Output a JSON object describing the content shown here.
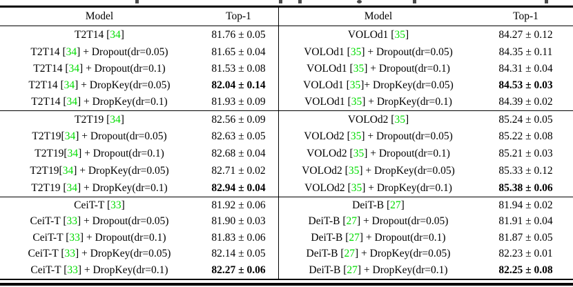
{
  "table": {
    "accent_green": "#00dc00",
    "header": {
      "model": "Model",
      "top1": "Top-1"
    },
    "blocks": [
      {
        "rows": [
          {
            "l": {
              "pre": "T2T14 [",
              "cite": "34",
              "post": "]",
              "top1": "81.76 ± 0.05",
              "bold": false
            },
            "r": {
              "pre": "VOLOd1 [",
              "cite": "35",
              "post": "]",
              "top1": "84.27 ± 0.12",
              "bold": false
            }
          },
          {
            "l": {
              "pre": "T2T14 [",
              "cite": "34",
              "post": "] + Dropout(dr=0.05)",
              "top1": "81.65 ± 0.04",
              "bold": false
            },
            "r": {
              "pre": "VOLOd1 [",
              "cite": "35",
              "post": "] + Dropout(dr=0.05)",
              "top1": "84.35 ± 0.11",
              "bold": false
            }
          },
          {
            "l": {
              "pre": "T2T14 [",
              "cite": "34",
              "post": "] + Dropout(dr=0.1)",
              "top1": "81.53 ± 0.08",
              "bold": false
            },
            "r": {
              "pre": "VOLOd1 [",
              "cite": "35",
              "post": "] + Dropout(dr=0.1)",
              "top1": "84.31 ± 0.04",
              "bold": false
            }
          },
          {
            "l": {
              "pre": "T2T14 [",
              "cite": "34",
              "post": "] + DropKey(dr=0.05)",
              "top1": "82.04 ± 0.14",
              "bold": true
            },
            "r": {
              "pre": "VOLOd1 [",
              "cite": "35",
              "post": "]+ DropKey(dr=0.05)",
              "top1": "84.53 ± 0.03",
              "bold": true
            }
          },
          {
            "l": {
              "pre": "T2T14 [",
              "cite": "34",
              "post": "] + DropKey(dr=0.1)",
              "top1": "81.93 ± 0.09",
              "bold": false
            },
            "r": {
              "pre": "VOLOd1 [",
              "cite": "35",
              "post": "] + DropKey(dr=0.1)",
              "top1": "84.39 ± 0.02",
              "bold": false
            }
          }
        ]
      },
      {
        "rows": [
          {
            "l": {
              "pre": "T2T19 [",
              "cite": "34",
              "post": "]",
              "top1": "82.56 ± 0.09",
              "bold": false
            },
            "r": {
              "pre": "VOLOd2 [",
              "cite": "35",
              "post": "]",
              "top1": "85.24 ± 0.05",
              "bold": false
            }
          },
          {
            "l": {
              "pre": "T2T19[",
              "cite": "34",
              "post": "] + Dropout(dr=0.05)",
              "top1": "82.63 ± 0.05",
              "bold": false
            },
            "r": {
              "pre": "VOLOd2 [",
              "cite": "35",
              "post": "] + Dropout(dr=0.05)",
              "top1": "85.22 ± 0.08",
              "bold": false
            }
          },
          {
            "l": {
              "pre": "T2T19[",
              "cite": "34",
              "post": "] + Dropout(dr=0.1)",
              "top1": "82.68 ± 0.04",
              "bold": false
            },
            "r": {
              "pre": "VOLOd2 [",
              "cite": "35",
              "post": "] + Dropout(dr=0.1)",
              "top1": "85.21 ± 0.03",
              "bold": false
            }
          },
          {
            "l": {
              "pre": "T2T19[",
              "cite": "34",
              "post": "] + DropKey(dr=0.05)",
              "top1": "82.71 ± 0.02",
              "bold": false
            },
            "r": {
              "pre": "VOLOd2 [",
              "cite": "35",
              "post": "] + DropKey(dr=0.05)",
              "top1": "85.33 ± 0.12",
              "bold": false
            }
          },
          {
            "l": {
              "pre": "T2T19 [",
              "cite": "34",
              "post": "] + DropKey(dr=0.1)",
              "top1": "82.94 ± 0.04",
              "bold": true
            },
            "r": {
              "pre": "VOLOd2 [",
              "cite": "35",
              "post": "] + DropKey(dr=0.1)",
              "top1": "85.38 ± 0.06",
              "bold": true
            }
          }
        ]
      },
      {
        "rows": [
          {
            "l": {
              "pre": "CeiT-T [",
              "cite": "33",
              "post": "]",
              "top1": "81.92 ± 0.06",
              "bold": false
            },
            "r": {
              "pre": "DeiT-B [",
              "cite": "27",
              "post": "]",
              "top1": "81.94 ± 0.02",
              "bold": false
            }
          },
          {
            "l": {
              "pre": "CeiT-T [",
              "cite": "33",
              "post": "] + Dropout(dr=0.05)",
              "top1": "81.90 ± 0.03",
              "bold": false
            },
            "r": {
              "pre": "DeiT-B [",
              "cite": "27",
              "post": "] + Dropout(dr=0.05)",
              "top1": "81.91 ± 0.04",
              "bold": false
            }
          },
          {
            "l": {
              "pre": "CeiT-T [",
              "cite": "33",
              "post": "] + Dropout(dr=0.1)",
              "top1": "81.83 ± 0.06",
              "bold": false
            },
            "r": {
              "pre": "DeiT-B [",
              "cite": "27",
              "post": "] + Dropout(dr=0.1)",
              "top1": "81.87 ± 0.05",
              "bold": false
            }
          },
          {
            "l": {
              "pre": "CeiT-T [",
              "cite": "33",
              "post": "] + DropKey(dr=0.05)",
              "top1": "82.14 ± 0.05",
              "bold": false
            },
            "r": {
              "pre": "DeiT-B [",
              "cite": "27",
              "post": "] + DropKey(dr=0.05)",
              "top1": "82.23 ± 0.01",
              "bold": false
            }
          },
          {
            "l": {
              "pre": "CeiT-T [",
              "cite": "33",
              "post": "] + DropKey(dr=0.1)",
              "top1": "82.27 ± 0.06",
              "bold": true
            },
            "r": {
              "pre": "DeiT-B [",
              "cite": "27",
              "post": "] + DropKey(dr=0.1)",
              "top1": "82.25 ± 0.08",
              "bold": true
            }
          }
        ]
      }
    ]
  }
}
